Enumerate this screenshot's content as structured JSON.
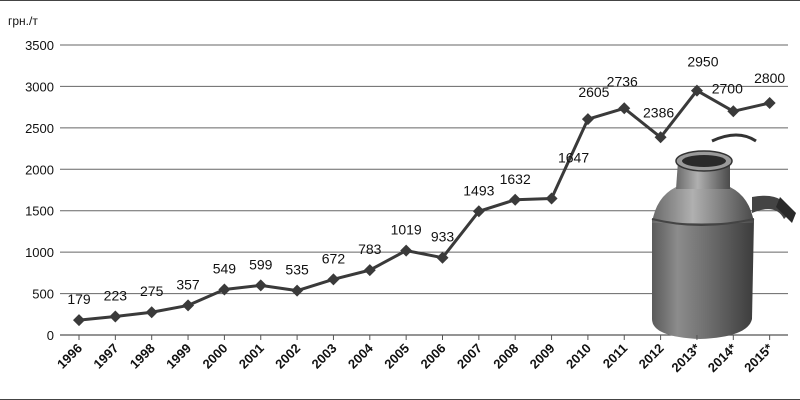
{
  "chart_data": {
    "type": "line",
    "ylabel": "грн./т",
    "ylim": [
      0,
      3500
    ],
    "yticks": [
      0,
      500,
      1000,
      1500,
      2000,
      2500,
      3000,
      3500
    ],
    "grid": true,
    "legend": "none",
    "categories": [
      "1996",
      "1997",
      "1998",
      "1999",
      "2000",
      "2001",
      "2002",
      "2003",
      "2004",
      "2005",
      "2006",
      "2007",
      "2008",
      "2009",
      "2010",
      "2011",
      "2012",
      "2013*",
      "2014*",
      "2015*"
    ],
    "series": [
      {
        "values": [
          179,
          223,
          275,
          357,
          549,
          599,
          535,
          672,
          783,
          1019,
          933,
          1493,
          1632,
          1647,
          2605,
          2736,
          2386,
          2950,
          2700,
          2800
        ]
      }
    ],
    "series_color": "#3a3a3a"
  },
  "decoration": {
    "image": "milk-can-picture"
  }
}
